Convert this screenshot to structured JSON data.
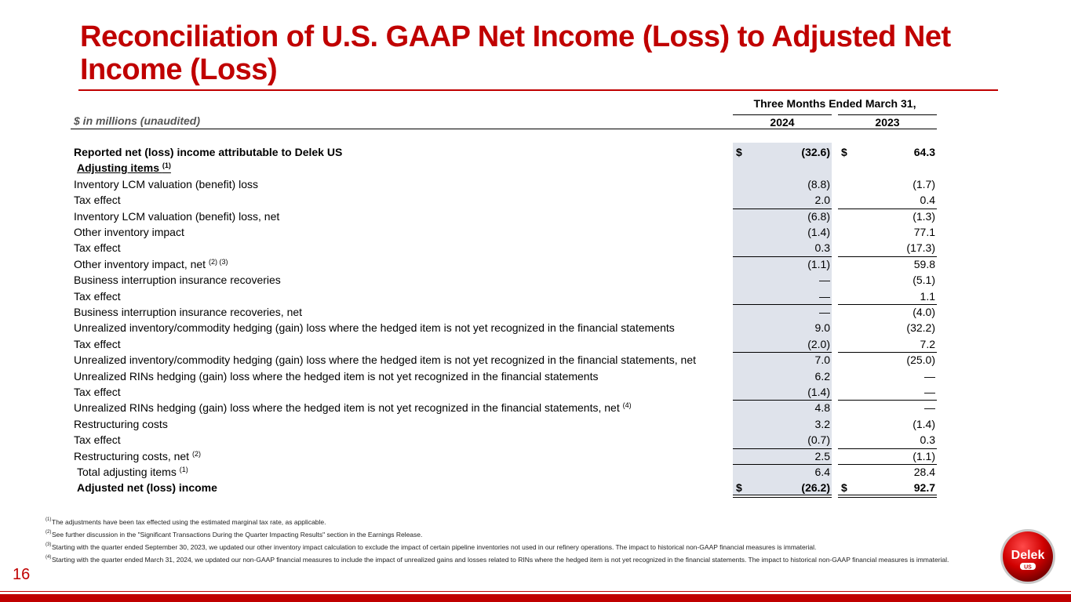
{
  "title": "Reconciliation of U.S. GAAP Net Income (Loss) to Adjusted Net Income (Loss)",
  "header": {
    "units": "$ in millions (unaudited)",
    "period": "Three Months Ended March 31,",
    "year1": "2024",
    "year2": "2023"
  },
  "rows": [
    {
      "label": "Reported net (loss) income attributable to Delek US",
      "sup": "",
      "v1": "(32.6)",
      "v2": "64.3",
      "dollar": "$"
    },
    {
      "label": "Adjusting items ",
      "sup": "(1)",
      "v1": "",
      "v2": ""
    },
    {
      "label": "Inventory LCM valuation (benefit) loss",
      "sup": "",
      "v1": "(8.8)",
      "v2": "(1.7)"
    },
    {
      "label": "Tax effect",
      "sup": "",
      "v1": "2.0",
      "v2": "0.4"
    },
    {
      "label": "Inventory LCM valuation (benefit) loss, net",
      "sup": "",
      "v1": "(6.8)",
      "v2": "(1.3)"
    },
    {
      "label": "Other inventory impact",
      "sup": "",
      "v1": "(1.4)",
      "v2": "77.1"
    },
    {
      "label": "Tax effect",
      "sup": "",
      "v1": "0.3",
      "v2": "(17.3)"
    },
    {
      "label": "Other inventory impact, net ",
      "sup": "(2) (3)",
      "v1": "(1.1)",
      "v2": "59.8"
    },
    {
      "label": "Business interruption insurance recoveries",
      "sup": "",
      "v1": "—",
      "v2": "(5.1)"
    },
    {
      "label": "Tax effect",
      "sup": "",
      "v1": "—",
      "v2": "1.1"
    },
    {
      "label": "Business interruption insurance recoveries, net",
      "sup": "",
      "v1": "—",
      "v2": "(4.0)"
    },
    {
      "label": "Unrealized inventory/commodity hedging (gain) loss where the hedged item is not yet recognized in the financial statements",
      "sup": "",
      "v1": "9.0",
      "v2": "(32.2)"
    },
    {
      "label": "Tax effect",
      "sup": "",
      "v1": "(2.0)",
      "v2": "7.2"
    },
    {
      "label": "Unrealized inventory/commodity hedging (gain) loss where the hedged item is not yet recognized in the financial statements, net",
      "sup": "",
      "v1": "7.0",
      "v2": "(25.0)"
    },
    {
      "label": "Unrealized RINs hedging (gain) loss where the hedged item is not yet recognized in the financial statements",
      "sup": "",
      "v1": "6.2",
      "v2": "—"
    },
    {
      "label": "Tax effect",
      "sup": "",
      "v1": "(1.4)",
      "v2": "—"
    },
    {
      "label": "Unrealized RINs hedging (gain) loss where the hedged item is not yet recognized in the financial statements, net ",
      "sup": "(4)",
      "v1": "4.8",
      "v2": "—"
    },
    {
      "label": "Restructuring costs",
      "sup": "",
      "v1": "3.2",
      "v2": "(1.4)"
    },
    {
      "label": "Tax effect",
      "sup": "",
      "v1": "(0.7)",
      "v2": "0.3"
    },
    {
      "label": "Restructuring costs, net ",
      "sup": "(2)",
      "v1": "2.5",
      "v2": "(1.1)"
    },
    {
      "label": "Total adjusting items ",
      "sup": "(1)",
      "v1": "6.4",
      "v2": "28.4"
    },
    {
      "label": "Adjusted net (loss) income",
      "sup": "",
      "v1": "(26.2)",
      "v2": "92.7",
      "dollar": "$"
    }
  ],
  "footnotes": [
    {
      "mark": "(1)",
      "text": "The adjustments have been tax effected using the estimated marginal tax rate, as applicable."
    },
    {
      "mark": "(2)",
      "text": " See further discussion in the \"Significant Transactions During the Quarter Impacting Results\" section in the Earnings Release."
    },
    {
      "mark": "(3)",
      "text": "Starting with the quarter ended September 30, 2023, we updated our other inventory impact calculation to exclude the impact of certain pipeline inventories not used in our refinery operations.  The impact to historical non-GAAP financial measures is immaterial."
    },
    {
      "mark": "(4)",
      "text": "Starting with the quarter ended March 31, 2024, we updated our non-GAAP financial measures to include the impact of unrealized gains and losses related to RINs where the hedged item is not yet recognized in the financial statements. The impact to historical non-GAAP financial measures is immaterial."
    }
  ],
  "page_number": "16",
  "logo": {
    "text": "Delek",
    "sub": "US"
  },
  "colors": {
    "accent": "#c00000",
    "shade": "#dfe3eb"
  }
}
